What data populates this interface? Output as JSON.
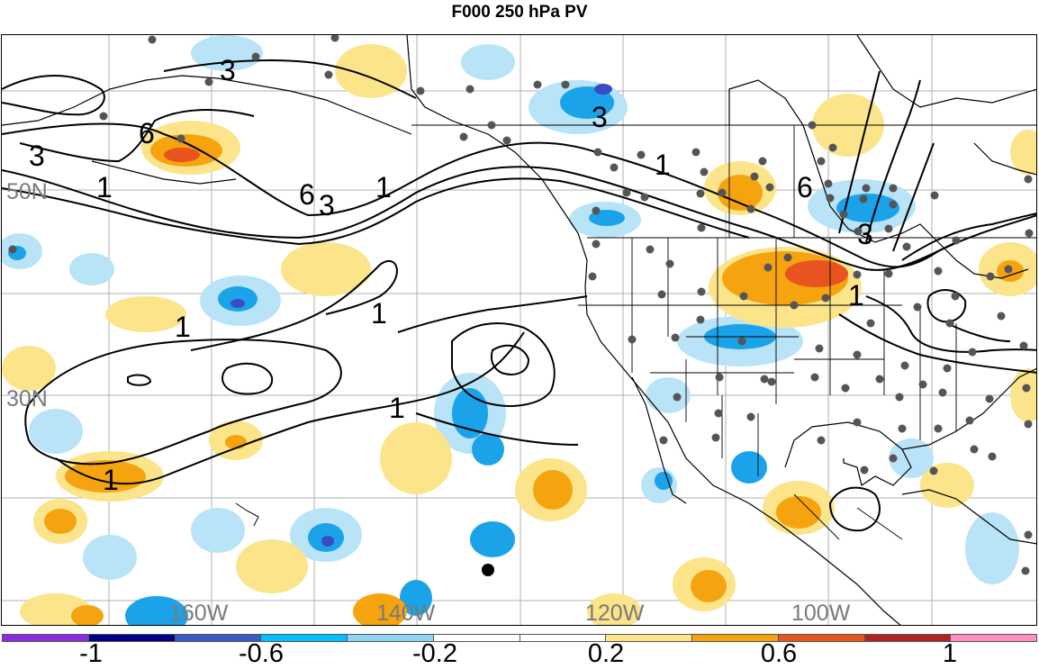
{
  "title": "F000 250 hPa PV",
  "lat_labels": [
    "50N",
    "30N"
  ],
  "lon_labels": [
    "160W",
    "140W",
    "120W",
    "100W"
  ],
  "contour_labels": [
    "3",
    "6",
    "3",
    "1",
    "6",
    "3",
    "1",
    "3",
    "1",
    "6",
    "3",
    "1",
    "1",
    "1",
    "1",
    "1"
  ],
  "colorbar": {
    "colors": [
      "#8a2be2",
      "#00008b",
      "#3a5bc7",
      "#00bfff",
      "#8fd3f5",
      "#ffffff",
      "#ffffff",
      "#fbe48a",
      "#f5a30f",
      "#e8531f",
      "#b22222",
      "#ff8fc0"
    ],
    "labels": [
      "-1",
      "-0.6",
      "-0.2",
      "0.2",
      "0.6",
      "1"
    ]
  },
  "colors": {
    "land_line": "#000000",
    "grid": "#b0b0b0",
    "station": "#555555",
    "neg_light": "#b9e3f7",
    "neg_mid": "#1aa3e8",
    "neg_strong": "#3b4bc4",
    "pos_light": "#fbe48a",
    "pos_mid": "#f5a30f",
    "pos_strong": "#e8531f"
  }
}
